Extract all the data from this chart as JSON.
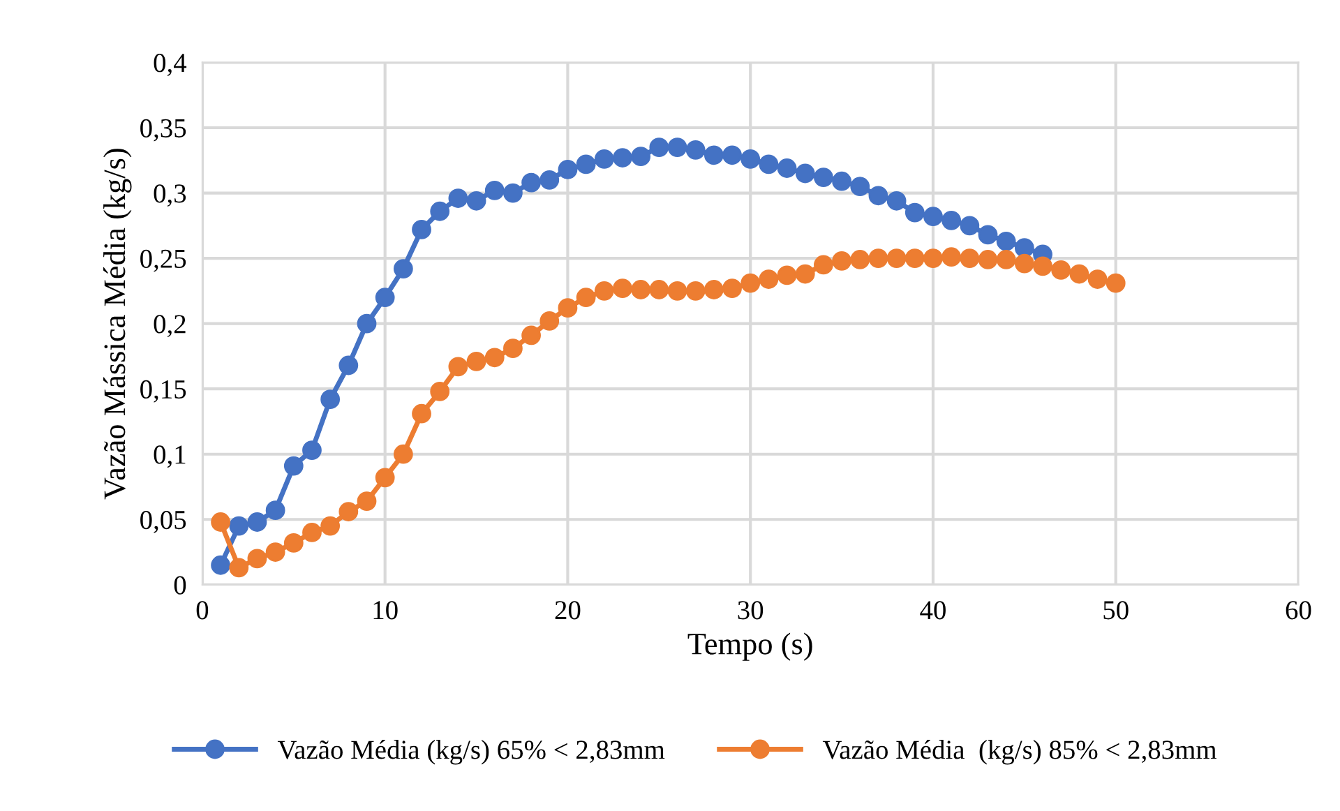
{
  "chart_data": {
    "type": "line",
    "xlabel": "Tempo (s)",
    "ylabel": "Vazão Mássica Média (kg/s)",
    "xlim": [
      0,
      60
    ],
    "xticks": [
      0,
      10,
      20,
      30,
      40,
      50,
      60
    ],
    "ylim": [
      0,
      0.4
    ],
    "yticks": [
      {
        "value": 0,
        "label": "0"
      },
      {
        "value": 0.05,
        "label": "0,05"
      },
      {
        "value": 0.1,
        "label": "0,1"
      },
      {
        "value": 0.15,
        "label": "0,15"
      },
      {
        "value": 0.2,
        "label": "0,2"
      },
      {
        "value": 0.25,
        "label": "0,25"
      },
      {
        "value": 0.3,
        "label": "0,3"
      },
      {
        "value": 0.35,
        "label": "0,35"
      },
      {
        "value": 0.4,
        "label": "0,4"
      }
    ],
    "grid": true,
    "legend": "bottom",
    "marker": "circle",
    "line_style": "solid",
    "series": [
      {
        "name": "Vazão Média (kg/s) 65% < 2,83mm",
        "color": "#4472c4",
        "x": [
          1,
          2,
          3,
          4,
          5,
          6,
          7,
          8,
          9,
          10,
          11,
          12,
          13,
          14,
          15,
          16,
          17,
          18,
          19,
          20,
          21,
          22,
          23,
          24,
          25,
          26,
          27,
          28,
          29,
          30,
          31,
          32,
          33,
          34,
          35,
          36,
          37,
          38,
          39,
          40,
          41,
          42,
          43,
          44,
          45,
          46
        ],
        "values": [
          0.015,
          0.045,
          0.048,
          0.057,
          0.091,
          0.103,
          0.142,
          0.168,
          0.2,
          0.22,
          0.242,
          0.272,
          0.286,
          0.296,
          0.294,
          0.302,
          0.3,
          0.308,
          0.31,
          0.318,
          0.322,
          0.326,
          0.327,
          0.328,
          0.335,
          0.335,
          0.333,
          0.329,
          0.329,
          0.326,
          0.322,
          0.319,
          0.315,
          0.312,
          0.309,
          0.305,
          0.298,
          0.294,
          0.285,
          0.282,
          0.279,
          0.275,
          0.268,
          0.263,
          0.258,
          0.253
        ]
      },
      {
        "name": "Vazão Média  (kg/s) 85% < 2,83mm",
        "color": "#ed7d31",
        "x": [
          1,
          2,
          3,
          4,
          5,
          6,
          7,
          8,
          9,
          10,
          11,
          12,
          13,
          14,
          15,
          16,
          17,
          18,
          19,
          20,
          21,
          22,
          23,
          24,
          25,
          26,
          27,
          28,
          29,
          30,
          31,
          32,
          33,
          34,
          35,
          36,
          37,
          38,
          39,
          40,
          41,
          42,
          43,
          44,
          45,
          46,
          47,
          48,
          49,
          50
        ],
        "values": [
          0.048,
          0.013,
          0.02,
          0.025,
          0.032,
          0.04,
          0.045,
          0.056,
          0.064,
          0.082,
          0.1,
          0.131,
          0.148,
          0.167,
          0.171,
          0.174,
          0.181,
          0.191,
          0.202,
          0.212,
          0.22,
          0.225,
          0.227,
          0.226,
          0.226,
          0.225,
          0.225,
          0.226,
          0.227,
          0.231,
          0.234,
          0.237,
          0.238,
          0.245,
          0.248,
          0.249,
          0.25,
          0.25,
          0.25,
          0.25,
          0.251,
          0.25,
          0.249,
          0.249,
          0.246,
          0.244,
          0.241,
          0.238,
          0.234,
          0.231
        ]
      }
    ]
  }
}
